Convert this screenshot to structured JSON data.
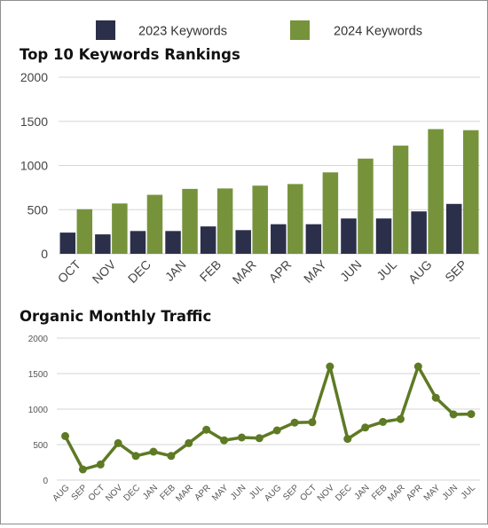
{
  "chart_data": [
    {
      "type": "bar",
      "title": "Top 10 Keywords Rankings",
      "categories": [
        "OCT",
        "NOV",
        "DEC",
        "JAN",
        "FEB",
        "MAR",
        "APR",
        "MAY",
        "JUN",
        "JUL",
        "AUG",
        "SEP"
      ],
      "series": [
        {
          "name": "2023 Keywords",
          "color": "#2b2f4a",
          "values": [
            240,
            220,
            258,
            258,
            310,
            268,
            335,
            335,
            400,
            400,
            480,
            565
          ]
        },
        {
          "name": "2024 Keywords",
          "color": "#76933c",
          "values": [
            505,
            570,
            668,
            735,
            740,
            772,
            790,
            922,
            1078,
            1225,
            1412,
            1400
          ]
        }
      ],
      "ylim": [
        0,
        2000
      ],
      "yticks": [
        0,
        500,
        1000,
        1500,
        2000
      ],
      "grid": true,
      "legend_position": "top"
    },
    {
      "type": "line",
      "title": "Organic Monthly Traffic",
      "categories": [
        "AUG",
        "SEP",
        "OCT",
        "NOV",
        "DEC",
        "JAN",
        "FEB",
        "MAR",
        "APR",
        "MAY",
        "JUN",
        "JUL",
        "AUG",
        "SEP",
        "OCT",
        "NOV",
        "DEC",
        "JAN",
        "FEB",
        "MAR",
        "APR",
        "MAY",
        "JUN",
        "JUL"
      ],
      "series": [
        {
          "color": "#5e7a24",
          "values": [
            620,
            150,
            220,
            520,
            340,
            400,
            340,
            520,
            710,
            560,
            600,
            590,
            700,
            810,
            815,
            1600,
            580,
            740,
            820,
            860,
            1600,
            1160,
            925,
            930
          ]
        }
      ],
      "ylim": [
        0,
        2000
      ],
      "yticks": [
        0,
        500,
        1000,
        1500,
        2000
      ],
      "grid": true
    }
  ]
}
